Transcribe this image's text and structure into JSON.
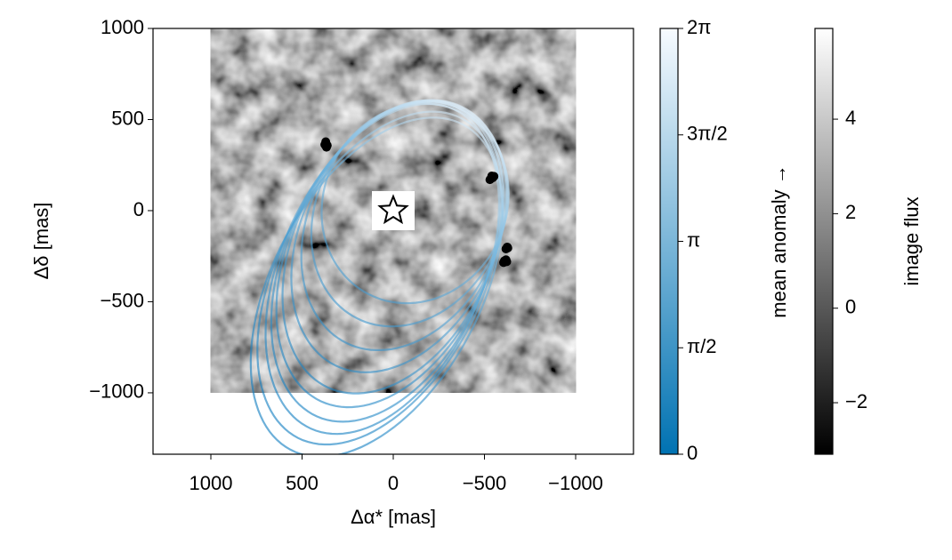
{
  "chart_data": {
    "type": "orbits",
    "xlabel": "Δα* [mas]",
    "ylabel": "Δδ [mas]",
    "xlim": [
      1317,
      -1317
    ],
    "ylim": [
      -1337,
      1000
    ],
    "xticks": [
      1000,
      500,
      0,
      {
        "value": -500,
        "label": "−500"
      },
      {
        "value": -1000,
        "label": "−1000"
      }
    ],
    "yticks": [
      1000,
      500,
      0,
      {
        "value": -500,
        "label": "−500"
      },
      {
        "value": -1000,
        "label": "−1000"
      }
    ],
    "image": {
      "xlim": [
        1000,
        -1000
      ],
      "ylim": [
        -1000,
        1000
      ]
    },
    "orbits": {
      "cx": [
        -120,
        -90,
        -60,
        -30,
        0,
        20,
        40,
        60,
        75,
        90
      ],
      "cy": [
        40,
        -20,
        -80,
        -140,
        -200,
        -240,
        -280,
        -320,
        -370,
        -420
      ],
      "a": [
        560,
        640,
        720,
        790,
        850,
        890,
        930,
        960,
        985,
        1010
      ],
      "b": [
        500,
        510,
        520,
        530,
        540,
        545,
        550,
        555,
        560,
        570
      ],
      "angle": [
        -63,
        -63,
        -64,
        -64,
        -65,
        -65,
        -66,
        -66,
        -63,
        -62
      ]
    },
    "points": {
      "color": "#000000",
      "x": [
        370,
        362,
        375,
        366,
        370,
        -540,
        -552,
        -530,
        -545,
        -625,
        -618,
        -628,
        -610,
        -622,
        -605,
        -618
      ],
      "y": [
        370,
        358,
        362,
        348,
        378,
        190,
        188,
        170,
        180,
        -200,
        -210,
        -205,
        -275,
        -280,
        -285,
        -270
      ]
    },
    "star": {
      "x": 0,
      "y": 0
    },
    "colorbars": [
      {
        "label": "mean anomaly →",
        "lim": [
          0,
          6.2832
        ],
        "colors": [
          "#0072b2",
          "#f7fbff"
        ],
        "ticks": [
          0,
          {
            "value": 1.5708,
            "label": "π/2"
          },
          {
            "value": 3.1416,
            "label": "π"
          },
          {
            "value": 4.7124,
            "label": "3π/2"
          },
          {
            "value": 6.2832,
            "label": "2π"
          }
        ]
      },
      {
        "label": "image flux",
        "lim": [
          -3.09,
          5.92
        ],
        "colors": [
          "#000000",
          "#ffffff"
        ],
        "ticks": [
          {
            "value": -2,
            "label": "−2"
          },
          0,
          2,
          4
        ]
      }
    ]
  }
}
